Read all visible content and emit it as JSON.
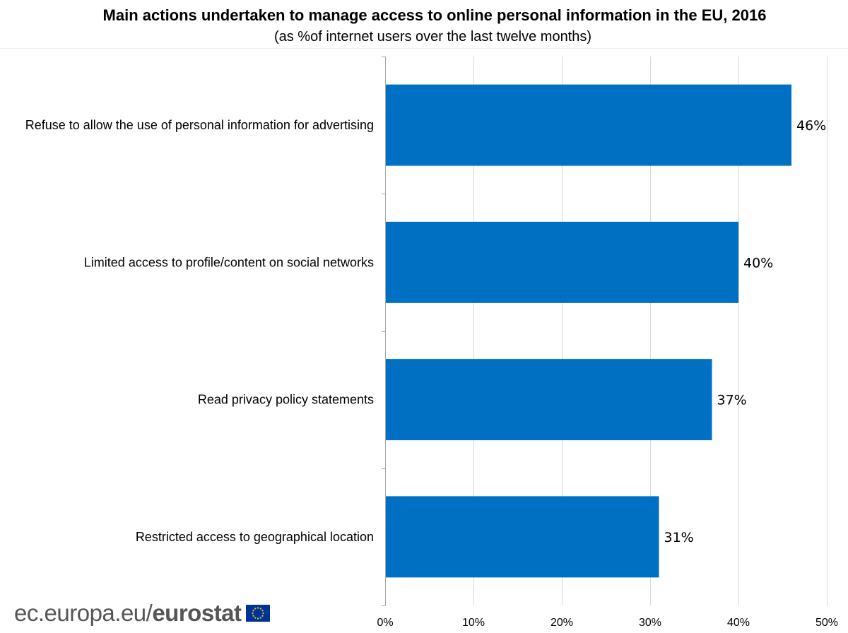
{
  "title": "Main actions undertaken to manage access to online personal information in the EU, 2016",
  "subtitle": "(as %of internet users over the last twelve months)",
  "footer": {
    "site": "ec.europa.eu/",
    "brand": "eurostat"
  },
  "colors": {
    "bar": "#0071C2",
    "grid": "#D9D9D9",
    "axis": "#A6A6A6",
    "flag_blue": "#003399",
    "flag_star": "#FFCC00"
  },
  "chart_data": {
    "type": "bar",
    "orientation": "horizontal",
    "categories": [
      "Refuse to allow the use of personal information for advertising",
      "Limited access to profile/content on social networks",
      "Read privacy policy statements",
      "Restricted access to geographical location"
    ],
    "values": [
      46,
      40,
      37,
      31
    ],
    "value_labels": [
      "46%",
      "40%",
      "37%",
      "31%"
    ],
    "xlim": [
      0,
      50
    ],
    "xticks": [
      0,
      10,
      20,
      30,
      40,
      50
    ],
    "xtick_labels": [
      "0%",
      "10%",
      "20%",
      "30%",
      "40%",
      "50%"
    ],
    "grid": "vertical",
    "legend": "none"
  }
}
